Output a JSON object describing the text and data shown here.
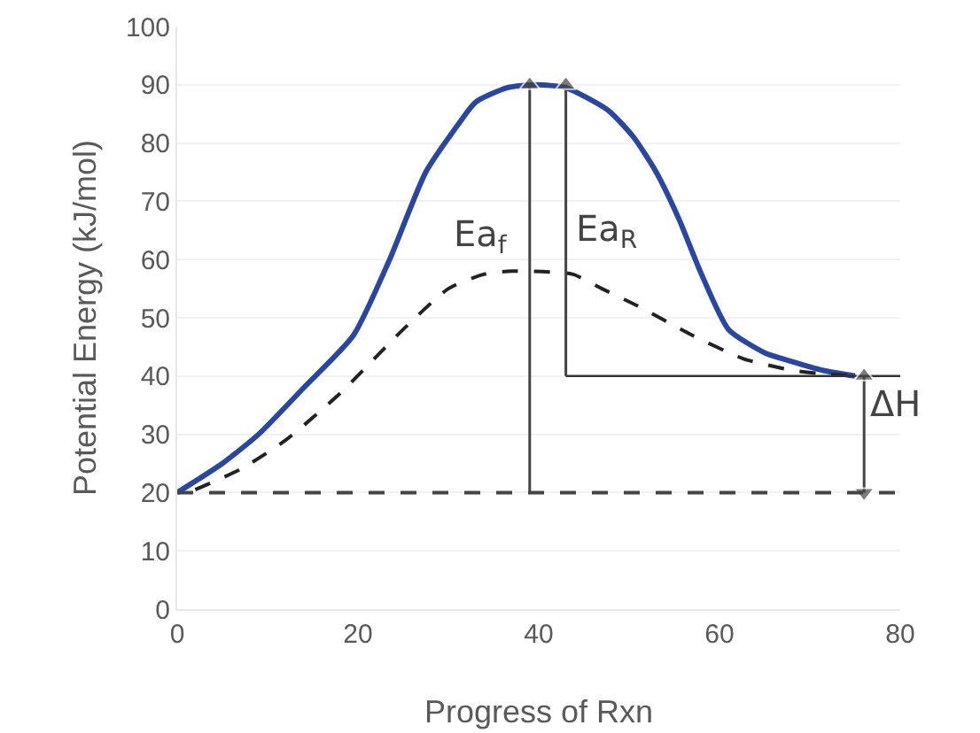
{
  "chart_data": {
    "type": "line",
    "xlabel": "Progress of Rxn",
    "ylabel": "Potential Energy (kJ/mol)",
    "xlim": [
      0,
      80
    ],
    "xticks": [
      0,
      20,
      40,
      60,
      80
    ],
    "ylim": [
      0,
      100
    ],
    "yticks": [
      0,
      10,
      20,
      30,
      40,
      50,
      60,
      70,
      80,
      90,
      100
    ],
    "grid": "y",
    "series": [
      {
        "color": "#2a47a0",
        "x": [
          0,
          5,
          9,
          14,
          19.5,
          23.5,
          27.5,
          31,
          33,
          36.5,
          39.7,
          43,
          47.7,
          50.5,
          53,
          55.5,
          58,
          61,
          65,
          68,
          71.4,
          75
        ],
        "values": [
          20,
          25,
          30,
          38,
          47,
          60,
          75,
          83,
          87,
          89.5,
          90,
          89.5,
          85.6,
          81,
          75,
          67,
          57.5,
          48,
          44,
          42.5,
          41,
          40
        ]
      },
      {
        "color": "#222222",
        "line_style": "dashed",
        "x": [
          2,
          7,
          12,
          18,
          25,
          30,
          34,
          37,
          43.7,
          47,
          51,
          57,
          62.6,
          68,
          72,
          75
        ],
        "values": [
          20.5,
          24,
          29,
          37,
          48,
          55,
          57.5,
          58,
          57.5,
          55,
          52,
          47,
          43,
          41,
          40.3,
          40
        ]
      },
      {
        "color": "#333333",
        "x": [
          43,
          80
        ],
        "values": [
          40,
          40
        ]
      },
      {
        "color": "#444444",
        "marker": "triangle",
        "x": [
          39,
          39
        ],
        "values": [
          20,
          90
        ]
      },
      {
        "color": "#444444",
        "marker": "triangle",
        "x": [
          43,
          43
        ],
        "values": [
          40,
          90
        ]
      },
      {
        "color": "#444444",
        "marker": "triangle",
        "x": [
          76,
          76,
          76
        ],
        "values": [
          20,
          30,
          40
        ]
      }
    ],
    "ref_lines": [
      {
        "axis": "y",
        "value": 20,
        "color": "#444444",
        "line_style": "dashed"
      }
    ],
    "annotations": [
      "Ea$_{f}$",
      "Ea$_{R}$",
      "ΔH"
    ]
  }
}
